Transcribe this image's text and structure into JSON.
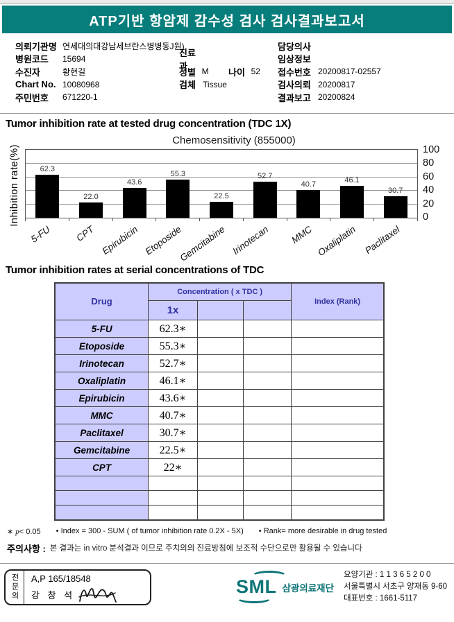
{
  "colors": {
    "banner_teal": "#077e7b",
    "table_lavender": "#ccccff",
    "table_header_navy": "#3232a0",
    "logo_teal": "#0e7478",
    "bar_black": "#000000"
  },
  "banner": {
    "title": "ATP기반 항암제 감수성 검사 검사결과보고서"
  },
  "info": {
    "r1": {
      "l1": "의뢰기관명",
      "v1": "연세대의대강남세브란스병병동J원)",
      "l3": "담당의사",
      "v3": ""
    },
    "r2": {
      "l1": "병원코드",
      "v1": "15694",
      "l2": "진료과",
      "v2": "",
      "l3": "임상정보",
      "v3": ""
    },
    "r3": {
      "l1": "수진자",
      "v1": "황현길",
      "l2a": "성별",
      "v2a": "M",
      "l2b": "나이",
      "v2b": "52",
      "l3": "접수번호",
      "v3": "20200817-02557"
    },
    "r4": {
      "l1": "Chart No.",
      "v1": "10080968",
      "l2": "검체",
      "v2": "Tissue",
      "l3": "검사의뢰",
      "v3": "20200817"
    },
    "r5": {
      "l1": "주민번호",
      "v1": "671220-1",
      "l3": "결과보고",
      "v3": "20200824"
    }
  },
  "section1_title": "Tumor inhibition rate at tested drug concentration (TDC 1X)",
  "chart_data": {
    "type": "bar",
    "title": "Chemosensitivity (855000)",
    "ylabel": "Inhibition rate(%)",
    "categories": [
      "5-FU",
      "CPT",
      "Epirubicin",
      "Etoposide",
      "Gemcitabine",
      "Irinotecan",
      "MMC",
      "Oxaliplatin",
      "Paclitaxel"
    ],
    "values": [
      62.3,
      22.0,
      43.6,
      55.3,
      22.5,
      52.7,
      40.7,
      46.1,
      30.7
    ],
    "ylim": [
      0,
      100
    ],
    "yticks": [
      100,
      80,
      60,
      40,
      20,
      0
    ],
    "ytick_side": "right",
    "grid": true,
    "bar_color": "#000000",
    "legend": "none"
  },
  "section2_title": "Tumor inhibition rates at serial concentrations of TDC",
  "table": {
    "header": {
      "drug": "Drug",
      "concentration": "Concentration ( x TDC )",
      "conc_sub": "1x",
      "index": "Index (Rank)"
    },
    "rows": [
      {
        "drug": "5-FU",
        "c1x": "62.3∗"
      },
      {
        "drug": "Etoposide",
        "c1x": "55.3∗"
      },
      {
        "drug": "Irinotecan",
        "c1x": "52.7∗"
      },
      {
        "drug": "Oxaliplatin",
        "c1x": "46.1∗"
      },
      {
        "drug": "Epirubicin",
        "c1x": "43.6∗"
      },
      {
        "drug": "MMC",
        "c1x": "40.7∗"
      },
      {
        "drug": "Paclitaxel",
        "c1x": "30.7∗"
      },
      {
        "drug": "Gemcitabine",
        "c1x": "22.5∗"
      },
      {
        "drug": "CPT",
        "c1x": "22∗"
      }
    ],
    "empty_rows": 3
  },
  "footnotes": {
    "star": "∗",
    "p": "p",
    "p_cond": "< 0.05",
    "index": "• Index = 300 - SUM ( of tumor inhibition rate 0.2X - 5X)",
    "rank": "• Rank= more desirable in drug tested"
  },
  "notice": {
    "label": "주의사항 :",
    "text": "본 결과는 in vitro 분석결과 이므로 주치의의 진료방침에 보조적 수단으로만 활용될 수 있습니다"
  },
  "footer": {
    "cert": {
      "side": "전문의",
      "license": "A,P 165/18548",
      "name": "강 창 석"
    },
    "logo": {
      "sml": "SML",
      "org": "삼광의료재단"
    },
    "lines": {
      "line1": "요양기관 : 1 1 3 6 5 2 0 0",
      "line2": "서울특별시 서초구 양재동 9-60",
      "line3": "대표번호 : 1661-5117"
    }
  }
}
